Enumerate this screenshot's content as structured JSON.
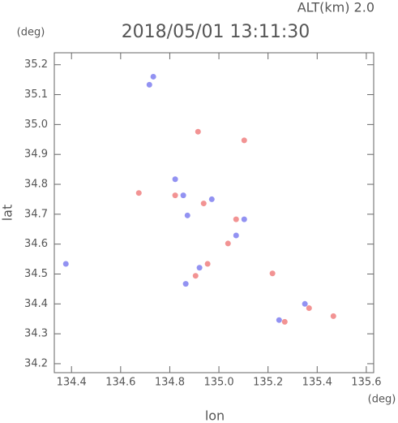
{
  "chart_data": {
    "type": "scatter",
    "title": "2018/05/01 13:11:30",
    "subtitle": "ALT(km) 2.0",
    "x_label": "lon",
    "y_label": "lat",
    "x_unit": "(deg)",
    "y_unit": "(deg)",
    "xlim": [
      134.33,
      135.63
    ],
    "ylim": [
      34.17,
      35.24
    ],
    "xticks": [
      134.4,
      134.6,
      134.8,
      {
        "value": 135,
        "label": "135.0"
      },
      135.2,
      135.4,
      135.6
    ],
    "yticks": [
      34.2,
      34.3,
      34.4,
      34.5,
      34.6,
      34.7,
      34.8,
      34.9,
      {
        "value": 35,
        "label": "35.0"
      },
      35.1,
      35.2
    ],
    "series": [
      {
        "color": "#7f7ff0",
        "x": [
          134.717,
          134.733,
          134.377,
          134.822,
          134.855,
          134.971,
          134.872,
          135.07,
          134.921,
          134.865,
          135.35,
          135.245,
          135.103
        ],
        "values": [
          35.133,
          35.16,
          34.534,
          34.817,
          34.763,
          34.75,
          34.696,
          34.629,
          34.521,
          34.467,
          34.4,
          34.346,
          34.683
        ]
      },
      {
        "color": "#f08080",
        "x": [
          134.915,
          135.103,
          134.674,
          134.822,
          134.938,
          135.07,
          135.037,
          134.954,
          134.905,
          135.466,
          135.268,
          135.367,
          135.218
        ],
        "values": [
          34.976,
          34.947,
          34.771,
          34.763,
          34.736,
          34.683,
          34.602,
          34.534,
          34.494,
          34.359,
          34.34,
          34.386,
          34.502
        ]
      }
    ]
  }
}
